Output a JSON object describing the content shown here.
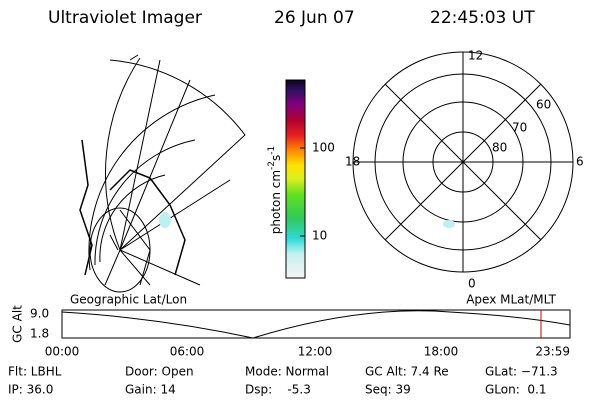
{
  "header": {
    "title": "Ultraviolet Imager",
    "date": "26 Jun 07",
    "time": "22:45:03 UT"
  },
  "colorbar": {
    "label": {
      "base": "photon cm",
      "exp1": "-2",
      "unit": "s",
      "exp2": "-1"
    },
    "ticks": [
      "100",
      "10"
    ]
  },
  "polar": {
    "mlt_labels": [
      "12",
      "18",
      "6",
      "0"
    ],
    "lat_labels": [
      "60",
      "70",
      "80"
    ]
  },
  "panels": {
    "left_caption": "Geographic Lat/Lon",
    "right_caption": "Apex MLat/MLT"
  },
  "timeline": {
    "axis_label": "GC Alt",
    "y_labels": [
      "9.0",
      "1.8"
    ],
    "x_labels": [
      "00:00",
      "06:00",
      "12:00",
      "18:00",
      "23:59"
    ]
  },
  "footer": [
    [
      "Flt: LBHL",
      "IP: 36.0"
    ],
    [
      "Door: Open",
      "Gain: 14"
    ],
    [
      "Mode: Normal",
      "Dsp:    -5.3"
    ],
    [
      "GC Alt: 7.4 Re",
      "Seq: 39"
    ],
    [
      "GLat: −71.3",
      "GLon:  0.1"
    ]
  ]
}
